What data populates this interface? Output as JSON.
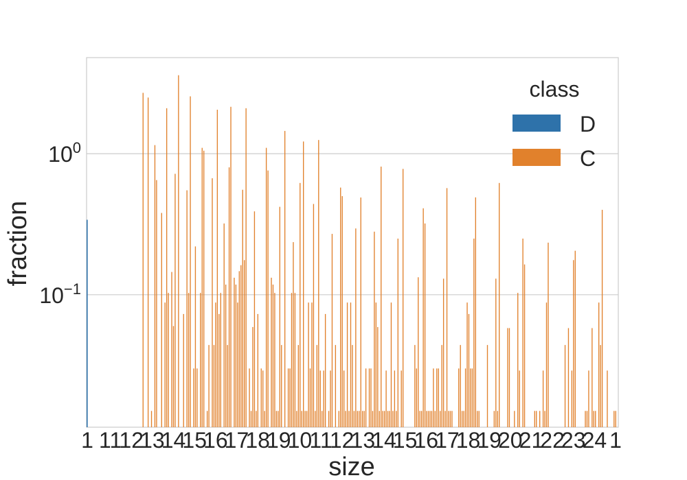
{
  "chart_data": {
    "type": "bar",
    "xlabel": "size",
    "ylabel": "fraction",
    "yscale": "log",
    "ylim": [
      0.0115,
      4.8
    ],
    "yticks": [
      {
        "value": 0.1,
        "base": "10",
        "exp": "−1"
      },
      {
        "value": 1,
        "base": "10",
        "exp": "0"
      }
    ],
    "grid": "horizontal",
    "legend": {
      "title": "class",
      "placement": "top-right"
    },
    "x_tick_labels": [
      "1",
      "11",
      "12",
      "13",
      "14",
      "15",
      "16",
      "17",
      "18",
      "19",
      "10",
      "11",
      "12",
      "13",
      "14",
      "15",
      "16",
      "17",
      "18",
      "19",
      "20",
      "21",
      "22",
      "23",
      "24",
      "1"
    ],
    "series": [
      {
        "name": "D",
        "color": "#2e72aa",
        "values": [
          0.34
        ]
      },
      {
        "name": "C",
        "color": "#e1812c",
        "values": [
          0,
          0,
          0,
          0,
          0,
          0,
          0,
          0,
          0,
          0,
          0,
          0,
          0,
          0,
          0,
          0,
          0,
          0,
          0,
          0,
          0,
          0,
          0,
          0,
          0,
          0,
          0,
          0,
          0,
          0,
          0,
          0,
          0,
          2.7,
          0,
          0,
          2.5,
          0,
          0.015,
          0,
          1.15,
          0.65,
          0,
          0,
          0.38,
          0,
          0.088,
          2.1,
          0.103,
          0,
          0.145,
          0.06,
          0.72,
          0,
          3.6,
          0,
          0,
          0.073,
          0,
          0.55,
          0.103,
          2.55,
          0,
          0.03,
          0.22,
          0.03,
          0,
          0.103,
          1.1,
          1.05,
          0,
          0.015,
          0.044,
          0,
          0.67,
          0.044,
          0.088,
          2.05,
          0.073,
          0.103,
          0,
          0.32,
          0.118,
          0.044,
          0.8,
          2.15,
          0,
          0.132,
          0.118,
          0.088,
          0.147,
          0.162,
          0.555,
          0.176,
          2.1,
          0,
          0.03,
          0.015,
          0.059,
          0.39,
          0.015,
          0.073,
          0,
          0.03,
          0.029,
          0.015,
          1.1,
          0.76,
          0,
          0.132,
          0.118,
          0.103,
          0.015,
          0.015,
          0.42,
          0.044,
          0,
          1.45,
          0,
          0.03,
          0.03,
          0.103,
          0.236,
          0.103,
          0.015,
          0.044,
          0.62,
          0.015,
          1.22,
          0.015,
          0.015,
          0.088,
          0.03,
          0.088,
          0.44,
          0.015,
          0.044,
          1.25,
          0.029,
          0.015,
          0.029,
          0.073,
          0,
          0.015,
          0.029,
          0.27,
          0,
          0.044,
          0,
          0.015,
          0.575,
          0.5,
          0.029,
          0.015,
          0.088,
          0.015,
          0.088,
          0.044,
          0.015,
          0.295,
          0.015,
          0.015,
          0.489,
          0.015,
          0.015,
          0.03,
          0,
          0.03,
          0.03,
          0.015,
          0.28,
          0.088,
          0.059,
          0.015,
          0.81,
          0.015,
          0.015,
          0.029,
          0.015,
          0.015,
          0.088,
          0.015,
          0.029,
          0.015,
          0.25,
          0,
          0.029,
          0.78,
          0,
          0,
          0,
          0,
          0,
          0,
          0.044,
          0.03,
          0.133,
          0.015,
          0.015,
          0.41,
          0.32,
          0.015,
          0.015,
          0.015,
          0.015,
          0.03,
          0.015,
          0.03,
          0.03,
          0.015,
          0.044,
          0.13,
          0.015,
          0.57,
          0.015,
          0.015,
          0.015,
          0,
          0,
          0,
          0.03,
          0.044,
          0.015,
          0.015,
          0.03,
          0.088,
          0.073,
          0.03,
          0.03,
          0.25,
          0.49,
          0.015,
          0.015,
          0,
          0,
          0,
          0,
          0.044,
          0,
          0,
          0,
          0.015,
          0.13,
          0.015,
          0.62,
          0,
          0,
          0,
          0,
          0.058,
          0.058,
          0,
          0,
          0.015,
          0,
          0.103,
          0.029,
          0,
          0.25,
          0.164,
          0,
          0,
          0,
          0,
          0,
          0.015,
          0.015,
          0,
          0.015,
          0,
          0.029,
          0.015,
          0.088,
          0.234,
          0,
          0,
          0,
          0,
          0,
          0,
          0,
          0,
          0,
          0.044,
          0,
          0.058,
          0,
          0.029,
          0.176,
          0.205,
          0,
          0,
          0,
          0,
          0,
          0.015,
          0.015,
          0.029,
          0,
          0.058,
          0.015,
          0.015,
          0,
          0.088,
          0.044,
          0.4,
          0,
          0,
          0.029,
          0,
          0,
          0,
          0.015,
          0.015,
          0
        ]
      }
    ]
  }
}
